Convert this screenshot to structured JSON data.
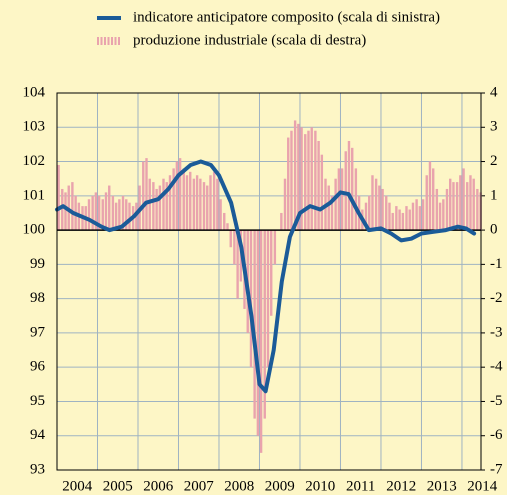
{
  "chart_data": {
    "type": "bar-line",
    "xlim": [
      2004,
      2014.47
    ],
    "xticks": [
      2004,
      2005,
      2006,
      2007,
      2008,
      2009,
      2010,
      2011,
      2012,
      2013,
      2014
    ],
    "ylim": [
      93,
      104
    ],
    "yticks": [
      93,
      94,
      95,
      96,
      97,
      98,
      99,
      100,
      101,
      102,
      103,
      104
    ],
    "y2lim": [
      -7,
      4
    ],
    "y2ticks": [
      -7,
      -6,
      -5,
      -4,
      -3,
      -2,
      -1,
      0,
      1,
      2,
      3,
      4
    ],
    "grid": true,
    "series": [
      {
        "name": "indicatore anticipatore composito (scala di sinistra)",
        "type": "line",
        "color": "#1b5b98",
        "x": [
          2004.0,
          2004.15,
          2004.4,
          2004.8,
          2005.1,
          2005.3,
          2005.6,
          2005.9,
          2006.2,
          2006.5,
          2006.75,
          2007.0,
          2007.3,
          2007.55,
          2007.8,
          2008.0,
          2008.3,
          2008.55,
          2008.8,
          2009.0,
          2009.15,
          2009.35,
          2009.55,
          2009.75,
          2010.0,
          2010.25,
          2010.5,
          2010.75,
          2011.0,
          2011.2,
          2011.45,
          2011.7,
          2012.0,
          2012.25,
          2012.5,
          2012.75,
          2013.0,
          2013.3,
          2013.6,
          2013.9,
          2014.1,
          2014.3
        ],
        "values": [
          100.6,
          100.7,
          100.5,
          100.3,
          100.1,
          100.0,
          100.1,
          100.4,
          100.8,
          100.9,
          101.2,
          101.6,
          101.9,
          102.0,
          101.9,
          101.6,
          100.8,
          99.5,
          97.5,
          95.5,
          95.3,
          96.5,
          98.5,
          99.8,
          100.5,
          100.7,
          100.6,
          100.8,
          101.1,
          101.05,
          100.5,
          100.0,
          100.05,
          99.9,
          99.7,
          99.75,
          99.9,
          99.95,
          100.0,
          100.1,
          100.05,
          99.9
        ]
      },
      {
        "name": "produzione industriale (scala di destra)",
        "type": "bar",
        "axis": "y2",
        "color": "#e9a3ad",
        "x": [
          2004.04,
          2004.13,
          2004.21,
          2004.29,
          2004.38,
          2004.46,
          2004.54,
          2004.63,
          2004.71,
          2004.79,
          2004.88,
          2004.96,
          2005.04,
          2005.13,
          2005.21,
          2005.29,
          2005.38,
          2005.46,
          2005.54,
          2005.63,
          2005.71,
          2005.79,
          2005.88,
          2005.96,
          2006.04,
          2006.13,
          2006.21,
          2006.29,
          2006.38,
          2006.46,
          2006.54,
          2006.63,
          2006.71,
          2006.79,
          2006.88,
          2006.96,
          2007.04,
          2007.13,
          2007.21,
          2007.29,
          2007.38,
          2007.46,
          2007.54,
          2007.63,
          2007.71,
          2007.79,
          2007.88,
          2007.96,
          2008.04,
          2008.13,
          2008.21,
          2008.29,
          2008.38,
          2008.46,
          2008.54,
          2008.63,
          2008.71,
          2008.79,
          2008.88,
          2008.96,
          2009.04,
          2009.13,
          2009.21,
          2009.29,
          2009.38,
          2009.46,
          2009.54,
          2009.63,
          2009.71,
          2009.79,
          2009.88,
          2009.96,
          2010.04,
          2010.13,
          2010.21,
          2010.29,
          2010.38,
          2010.46,
          2010.54,
          2010.63,
          2010.71,
          2010.79,
          2010.88,
          2010.96,
          2011.04,
          2011.13,
          2011.21,
          2011.29,
          2011.38,
          2011.46,
          2011.54,
          2011.63,
          2011.71,
          2011.79,
          2011.88,
          2011.96,
          2012.04,
          2012.13,
          2012.21,
          2012.29,
          2012.38,
          2012.46,
          2012.54,
          2012.63,
          2012.71,
          2012.79,
          2012.88,
          2012.96,
          2013.04,
          2013.13,
          2013.21,
          2013.29,
          2013.38,
          2013.46,
          2013.54,
          2013.63,
          2013.71,
          2013.79,
          2013.88,
          2013.96,
          2014.04,
          2014.13,
          2014.21,
          2014.29,
          2014.38,
          2014.46
        ],
        "values": [
          1.9,
          1.2,
          1.1,
          1.3,
          1.4,
          1.0,
          0.8,
          0.7,
          0.7,
          0.9,
          1.0,
          1.1,
          1.0,
          0.9,
          1.1,
          1.3,
          1.0,
          0.8,
          0.9,
          1.0,
          0.9,
          0.8,
          0.7,
          0.8,
          1.3,
          2.0,
          2.1,
          1.5,
          1.4,
          1.2,
          1.3,
          1.5,
          1.4,
          1.6,
          1.8,
          2.0,
          2.1,
          1.8,
          1.6,
          1.7,
          1.5,
          1.6,
          1.5,
          1.4,
          1.3,
          1.6,
          1.7,
          1.5,
          0.9,
          0.5,
          0.2,
          -0.5,
          -1.0,
          -2.0,
          -1.5,
          -2.3,
          -3.0,
          -4.0,
          -5.5,
          -6.0,
          -6.5,
          -5.5,
          -4.0,
          -2.5,
          -1.0,
          0.0,
          0.5,
          1.5,
          2.7,
          2.9,
          3.2,
          3.1,
          3.0,
          2.8,
          2.9,
          3.0,
          2.9,
          2.6,
          2.2,
          1.5,
          1.3,
          1.0,
          1.5,
          1.8,
          1.8,
          2.3,
          2.6,
          2.4,
          1.8,
          1.0,
          0.6,
          0.8,
          1.0,
          1.6,
          1.5,
          1.3,
          1.2,
          1.0,
          0.8,
          0.5,
          0.7,
          0.6,
          0.5,
          0.7,
          0.6,
          0.8,
          0.9,
          0.7,
          0.9,
          1.6,
          2.0,
          1.8,
          1.2,
          0.8,
          0.9,
          1.2,
          1.5,
          1.4,
          1.4,
          1.6,
          1.8,
          1.4,
          1.6,
          1.5,
          1.2,
          1.1
        ]
      }
    ]
  }
}
